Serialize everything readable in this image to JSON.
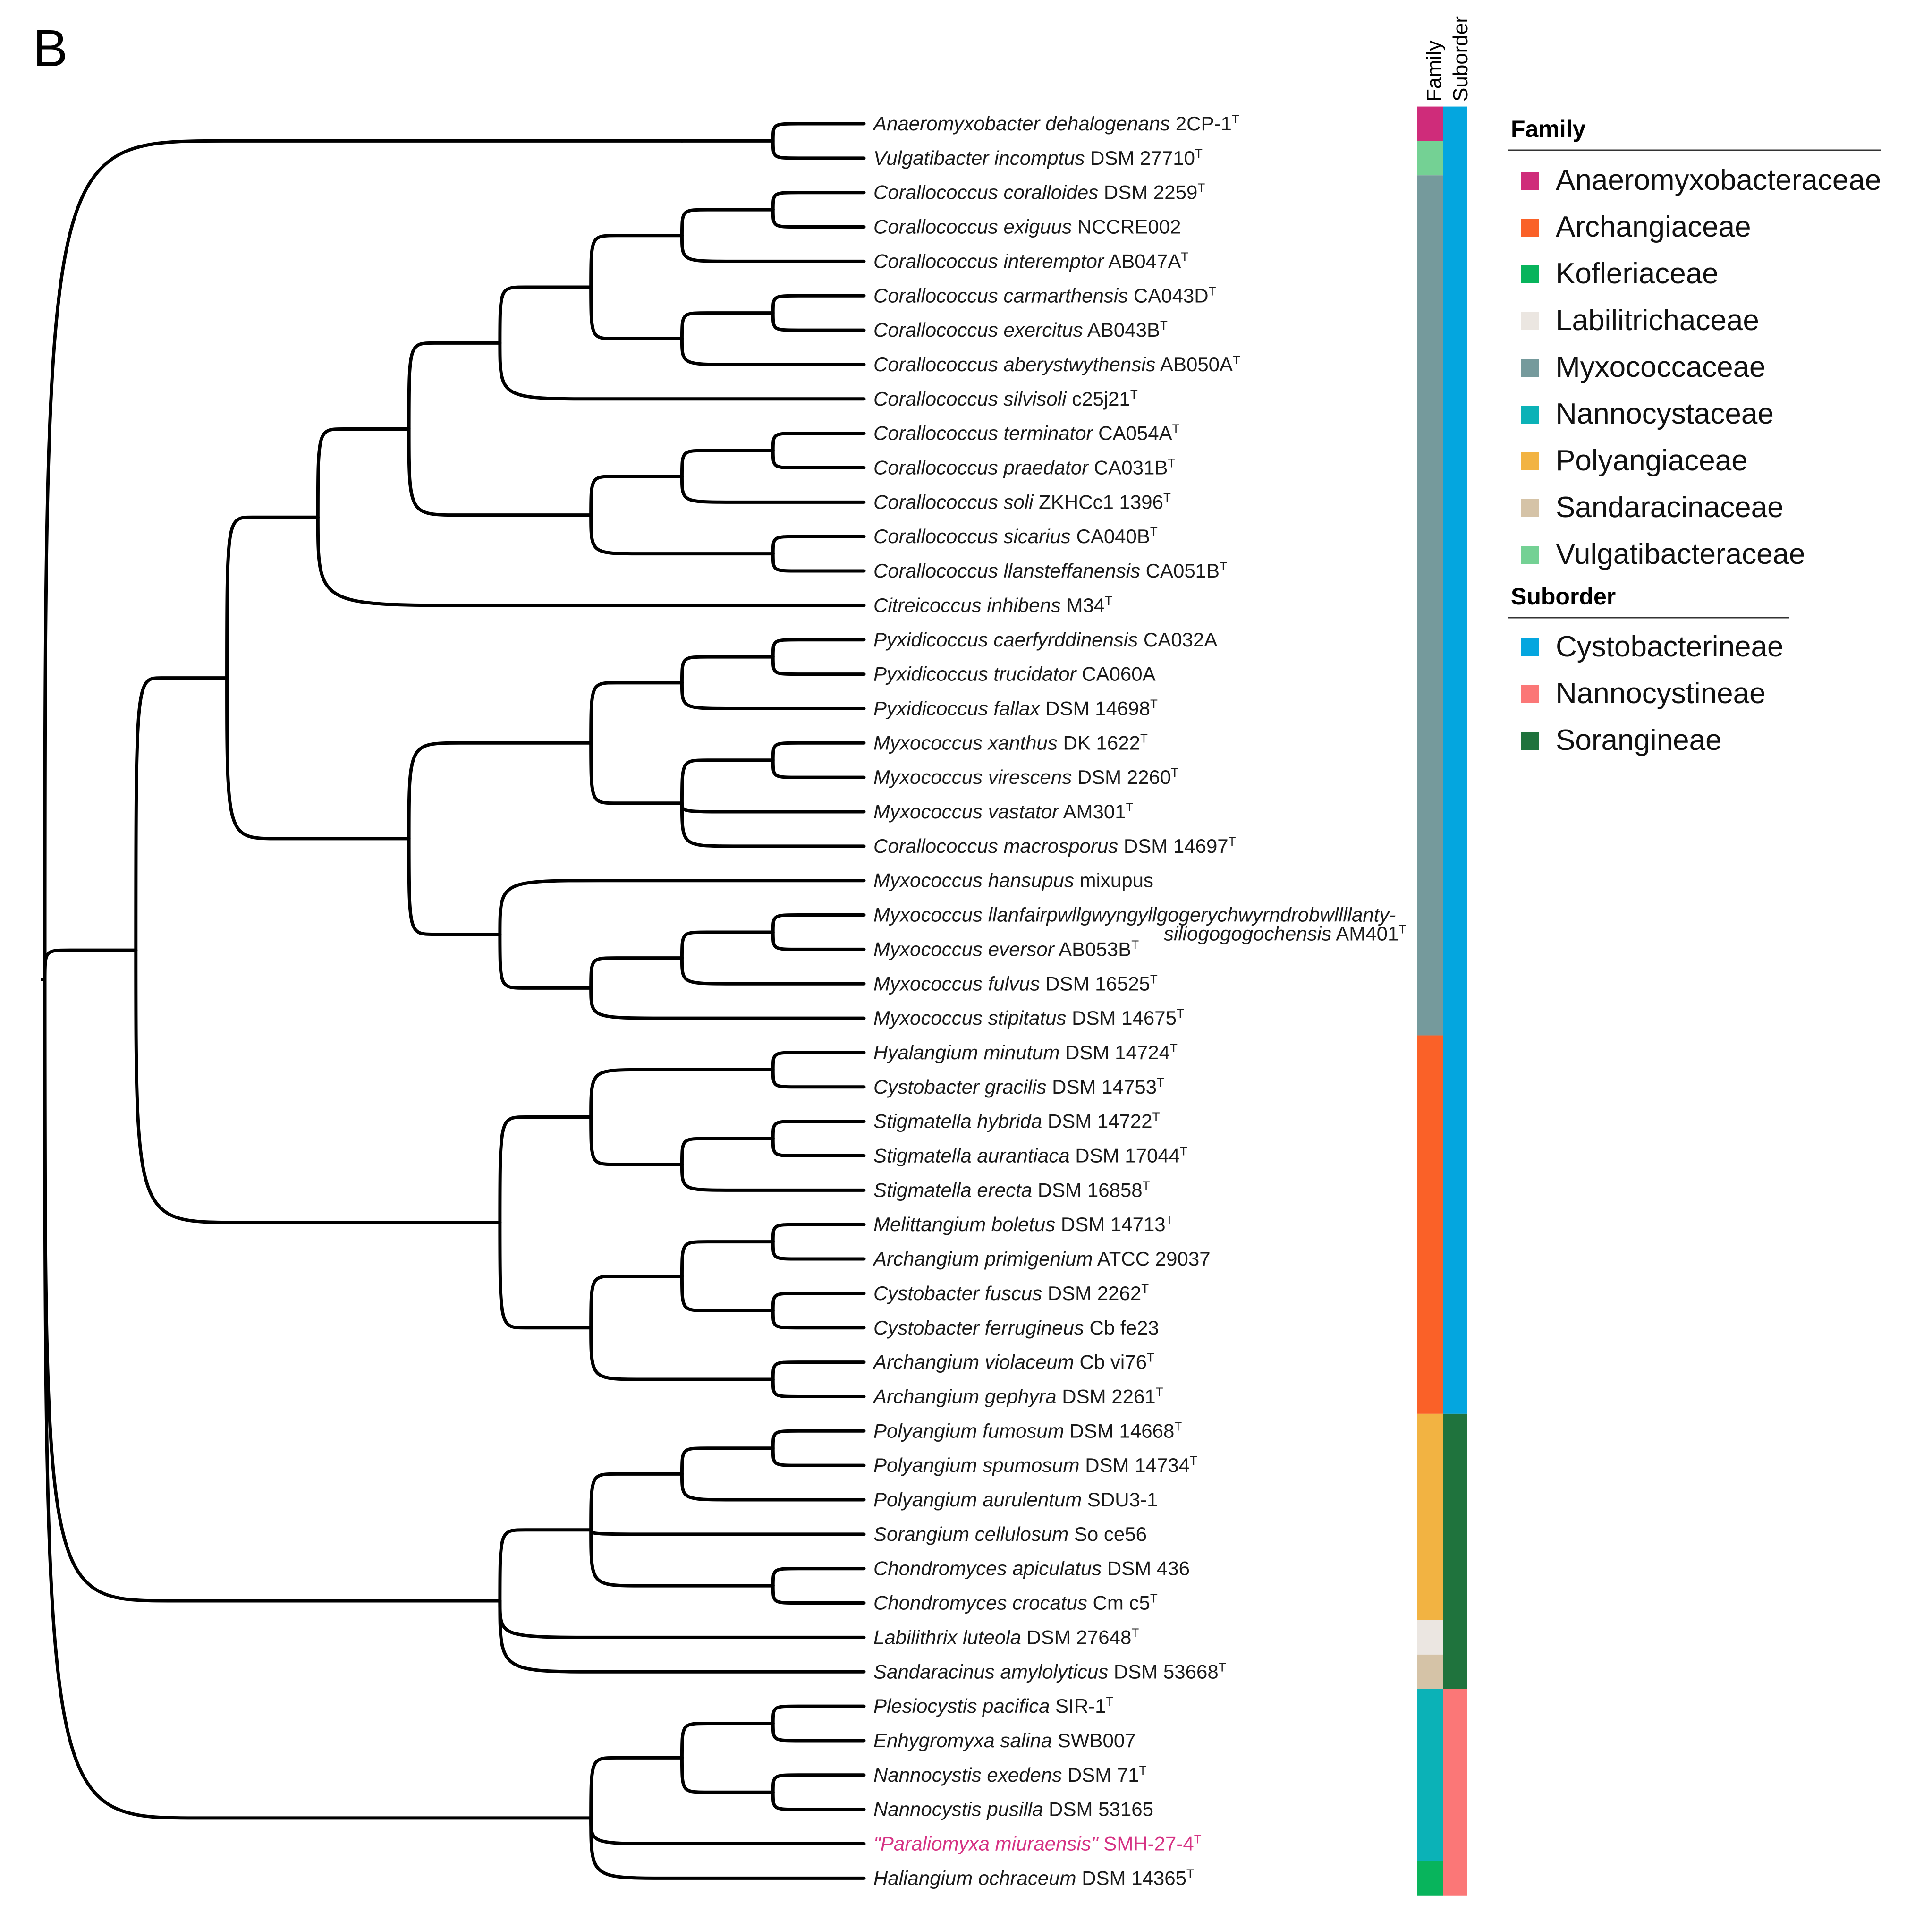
{
  "panel_label": "B",
  "strip_headers": {
    "family": "Family",
    "suborder": "Suborder"
  },
  "colors": {
    "branch": "#000000",
    "text": "#1a1a1a",
    "highlight": "#d63384"
  },
  "legend": {
    "family_title": "Family",
    "families": [
      {
        "label": "Anaeromyxobacteraceae",
        "color": "#cf2c7a"
      },
      {
        "label": "Archangiaceae",
        "color": "#fa6128"
      },
      {
        "label": "Kofleriaceae",
        "color": "#08b45c"
      },
      {
        "label": "Labilitrichaceae",
        "color": "#ebe6e1"
      },
      {
        "label": "Myxococcaceae",
        "color": "#759a9c"
      },
      {
        "label": "Nannocystaceae",
        "color": "#0bb2b7"
      },
      {
        "label": "Polyangiaceae",
        "color": "#f2b342"
      },
      {
        "label": "Sandaracinaceae",
        "color": "#d5c3a7"
      },
      {
        "label": "Vulgatibacteraceae",
        "color": "#74d194"
      }
    ],
    "suborder_title": "Suborder",
    "suborders": [
      {
        "label": "Cystobacterineae",
        "color": "#04a6df"
      },
      {
        "label": "Nannocystineae",
        "color": "#fb7777"
      },
      {
        "label": "Sorangineae",
        "color": "#1f733d"
      }
    ]
  },
  "taxa": [
    {
      "genus": "Anaeromyxobacter dehalogenans",
      "strain": "2CP-1",
      "type": true,
      "family": "Anaeromyxobacteraceae",
      "suborder": "Cystobacterineae"
    },
    {
      "genus": "Vulgatibacter incomptus",
      "strain": "DSM 27710",
      "type": true,
      "family": "Vulgatibacteraceae",
      "suborder": "Cystobacterineae"
    },
    {
      "genus": "Corallococcus coralloides",
      "strain": "DSM 2259",
      "type": true,
      "family": "Myxococcaceae",
      "suborder": "Cystobacterineae"
    },
    {
      "genus": "Corallococcus exiguus",
      "strain": "NCCRE002",
      "type": false,
      "family": "Myxococcaceae",
      "suborder": "Cystobacterineae"
    },
    {
      "genus": "Corallococcus interemptor",
      "strain": "AB047A",
      "type": true,
      "family": "Myxococcaceae",
      "suborder": "Cystobacterineae"
    },
    {
      "genus": "Corallococcus carmarthensis",
      "strain": "CA043D",
      "type": true,
      "family": "Myxococcaceae",
      "suborder": "Cystobacterineae"
    },
    {
      "genus": "Corallococcus exercitus",
      "strain": "AB043B",
      "type": true,
      "family": "Myxococcaceae",
      "suborder": "Cystobacterineae"
    },
    {
      "genus": "Corallococcus aberystwythensis",
      "strain": "AB050A",
      "type": true,
      "family": "Myxococcaceae",
      "suborder": "Cystobacterineae"
    },
    {
      "genus": "Corallococcus silvisoli",
      "strain": "c25j21",
      "type": true,
      "family": "Myxococcaceae",
      "suborder": "Cystobacterineae"
    },
    {
      "genus": "Corallococcus terminator",
      "strain": "CA054A",
      "type": true,
      "family": "Myxococcaceae",
      "suborder": "Cystobacterineae"
    },
    {
      "genus": "Corallococcus praedator",
      "strain": "CA031B",
      "type": true,
      "family": "Myxococcaceae",
      "suborder": "Cystobacterineae"
    },
    {
      "genus": "Corallococcus soli",
      "strain": "ZKHCc1 1396",
      "type": true,
      "family": "Myxococcaceae",
      "suborder": "Cystobacterineae"
    },
    {
      "genus": "Corallococcus sicarius",
      "strain": "CA040B",
      "type": true,
      "family": "Myxococcaceae",
      "suborder": "Cystobacterineae"
    },
    {
      "genus": "Corallococcus llansteffanensis",
      "strain": "CA051B",
      "type": true,
      "family": "Myxococcaceae",
      "suborder": "Cystobacterineae"
    },
    {
      "genus": "Citreicoccus inhibens",
      "strain": "M34",
      "type": true,
      "family": "Myxococcaceae",
      "suborder": "Cystobacterineae"
    },
    {
      "genus": "Pyxidicoccus caerfyrddinensis",
      "strain": "CA032A",
      "type": false,
      "family": "Myxococcaceae",
      "suborder": "Cystobacterineae"
    },
    {
      "genus": "Pyxidicoccus trucidator",
      "strain": "CA060A",
      "type": false,
      "family": "Myxococcaceae",
      "suborder": "Cystobacterineae"
    },
    {
      "genus": "Pyxidicoccus fallax",
      "strain": "DSM 14698",
      "type": true,
      "family": "Myxococcaceae",
      "suborder": "Cystobacterineae"
    },
    {
      "genus": "Myxococcus xanthus",
      "strain": "DK 1622",
      "type": true,
      "family": "Myxococcaceae",
      "suborder": "Cystobacterineae"
    },
    {
      "genus": "Myxococcus virescens",
      "strain": "DSM 2260",
      "type": true,
      "family": "Myxococcaceae",
      "suborder": "Cystobacterineae"
    },
    {
      "genus": "Myxococcus vastator",
      "strain": "AM301",
      "type": true,
      "family": "Myxococcaceae",
      "suborder": "Cystobacterineae"
    },
    {
      "genus": "Corallococcus macrosporus",
      "strain": "DSM 14697",
      "type": true,
      "family": "Myxococcaceae",
      "suborder": "Cystobacterineae"
    },
    {
      "genus": "Myxococcus hansupus",
      "strain": "mixupus",
      "type": false,
      "family": "Myxococcaceae",
      "suborder": "Cystobacterineae"
    },
    {
      "genus": "Myxococcus llanfairpwllgwyngyllgogerychwyrndrobwllllanty-",
      "genus2": "siliogogogochensis",
      "strain": "AM401",
      "type": true,
      "family": "Myxococcaceae",
      "suborder": "Cystobacterineae"
    },
    {
      "genus": "Myxococcus eversor",
      "strain": "AB053B",
      "type": true,
      "family": "Myxococcaceae",
      "suborder": "Cystobacterineae"
    },
    {
      "genus": "Myxococcus fulvus",
      "strain": "DSM 16525",
      "type": true,
      "family": "Myxococcaceae",
      "suborder": "Cystobacterineae"
    },
    {
      "genus": "Myxococcus stipitatus",
      "strain": "DSM 14675",
      "type": true,
      "family": "Myxococcaceae",
      "suborder": "Cystobacterineae"
    },
    {
      "genus": "Hyalangium minutum",
      "strain": "DSM 14724",
      "type": true,
      "family": "Archangiaceae",
      "suborder": "Cystobacterineae"
    },
    {
      "genus": "Cystobacter gracilis",
      "strain": "DSM 14753",
      "type": true,
      "family": "Archangiaceae",
      "suborder": "Cystobacterineae"
    },
    {
      "genus": "Stigmatella hybrida",
      "strain": "DSM 14722",
      "type": true,
      "family": "Archangiaceae",
      "suborder": "Cystobacterineae"
    },
    {
      "genus": "Stigmatella aurantiaca",
      "strain": "DSM 17044",
      "type": true,
      "family": "Archangiaceae",
      "suborder": "Cystobacterineae"
    },
    {
      "genus": "Stigmatella erecta",
      "strain": "DSM 16858",
      "type": true,
      "family": "Archangiaceae",
      "suborder": "Cystobacterineae"
    },
    {
      "genus": "Melittangium boletus",
      "strain": "DSM 14713",
      "type": true,
      "family": "Archangiaceae",
      "suborder": "Cystobacterineae"
    },
    {
      "genus": "Archangium primigenium",
      "strain": "ATCC 29037",
      "type": false,
      "family": "Archangiaceae",
      "suborder": "Cystobacterineae"
    },
    {
      "genus": "Cystobacter fuscus",
      "strain": "DSM 2262",
      "type": true,
      "family": "Archangiaceae",
      "suborder": "Cystobacterineae"
    },
    {
      "genus": "Cystobacter ferrugineus",
      "strain": "Cb fe23",
      "type": false,
      "family": "Archangiaceae",
      "suborder": "Cystobacterineae"
    },
    {
      "genus": "Archangium violaceum",
      "strain": "Cb vi76",
      "type": true,
      "family": "Archangiaceae",
      "suborder": "Cystobacterineae"
    },
    {
      "genus": "Archangium gephyra",
      "strain": "DSM 2261",
      "type": true,
      "family": "Archangiaceae",
      "suborder": "Cystobacterineae"
    },
    {
      "genus": "Polyangium fumosum",
      "strain": "DSM 14668",
      "type": true,
      "family": "Polyangiaceae",
      "suborder": "Sorangineae"
    },
    {
      "genus": "Polyangium spumosum",
      "strain": "DSM 14734",
      "type": true,
      "family": "Polyangiaceae",
      "suborder": "Sorangineae"
    },
    {
      "genus": "Polyangium aurulentum",
      "strain": "SDU3-1",
      "type": false,
      "family": "Polyangiaceae",
      "suborder": "Sorangineae"
    },
    {
      "genus": "Sorangium cellulosum",
      "strain": "So ce56",
      "type": false,
      "family": "Polyangiaceae",
      "suborder": "Sorangineae"
    },
    {
      "genus": "Chondromyces apiculatus",
      "strain": "DSM 436",
      "type": false,
      "family": "Polyangiaceae",
      "suborder": "Sorangineae"
    },
    {
      "genus": "Chondromyces crocatus",
      "strain": "Cm c5",
      "type": true,
      "family": "Polyangiaceae",
      "suborder": "Sorangineae"
    },
    {
      "genus": "Labilithrix luteola",
      "strain": "DSM 27648",
      "type": true,
      "family": "Labilitrichaceae",
      "suborder": "Sorangineae"
    },
    {
      "genus": "Sandaracinus amylolyticus",
      "strain": "DSM 53668",
      "type": true,
      "family": "Sandaracinaceae",
      "suborder": "Sorangineae"
    },
    {
      "genus": "Plesiocystis pacifica",
      "strain": "SIR-1",
      "type": true,
      "family": "Nannocystaceae",
      "suborder": "Nannocystineae"
    },
    {
      "genus": "Enhygromyxa salina",
      "strain": "SWB007",
      "type": false,
      "family": "Nannocystaceae",
      "suborder": "Nannocystineae"
    },
    {
      "genus": "Nannocystis exedens",
      "strain": "DSM 71",
      "type": true,
      "family": "Nannocystaceae",
      "suborder": "Nannocystineae"
    },
    {
      "genus": "Nannocystis pusilla",
      "strain": "DSM 53165",
      "type": false,
      "family": "Nannocystaceae",
      "suborder": "Nannocystineae"
    },
    {
      "genus": "\"Paraliomyxa miuraensis\"",
      "strain": "SMH-27-4",
      "type": true,
      "highlight": true,
      "family": "Nannocystaceae",
      "suborder": "Nannocystineae"
    },
    {
      "genus": "Haliangium ochraceum",
      "strain": "DSM 14365",
      "type": true,
      "family": "Kofleriaceae",
      "suborder": "Nannocystineae"
    }
  ],
  "type_marker": "T",
  "tree": {
    "children": [
      {
        "children": [
          {
            "children": [
              {
                "children": [
                  {
                    "children": [
                      {
                        "children": [
                          {
                            "children": [
                              {
                                "children": [
                                  {
                                    "children": [
                                      2,
                                      3
                                    ]
                                  },
                                  4
                                ]
                              },
                              {
                                "children": [
                                  {
                                    "children": [
                                      5,
                                      6
                                    ]
                                  },
                                  7
                                ]
                              }
                            ]
                          },
                          8
                        ]
                      },
                      {
                        "children": [
                          {
                            "children": [
                              {
                                "children": [
                                  9,
                                  10
                                ]
                              },
                              11
                            ]
                          },
                          {
                            "children": [
                              12,
                              13
                            ]
                          }
                        ]
                      }
                    ]
                  },
                  14
                ]
              },
              {
                "children": [
                  {
                    "children": [
                      {
                        "children": [
                          {
                            "children": [
                              15,
                              16
                            ]
                          },
                          17
                        ]
                      },
                      {
                        "children": [
                          {
                            "children": [
                              18,
                              19
                            ]
                          },
                          20,
                          21
                        ]
                      }
                    ]
                  },
                  {
                    "children": [
                      22,
                      {
                        "children": [
                          {
                            "children": [
                              {
                                "children": [
                                  23,
                                  24
                                ]
                              },
                              25
                            ]
                          },
                          26
                        ]
                      }
                    ]
                  }
                ]
              }
            ]
          },
          {
            "children": [
              {
                "children": [
                  {
                    "children": [
                      27,
                      28
                    ]
                  },
                  {
                    "children": [
                      {
                        "children": [
                          29,
                          30
                        ]
                      },
                      31
                    ]
                  }
                ]
              },
              {
                "children": [
                  {
                    "children": [
                      {
                        "children": [
                          32,
                          33
                        ]
                      },
                      {
                        "children": [
                          34,
                          35
                        ]
                      }
                    ]
                  },
                  {
                    "children": [
                      36,
                      37
                    ]
                  }
                ]
              }
            ]
          }
        ]
      },
      {
        "children": [
          {
            "children": [
              0,
              1
            ]
          }
        ]
      },
      {
        "children": [
          {
            "children": [
              {
                "children": [
                  {
                    "children": [
                      38,
                      39
                    ]
                  },
                  40
                ]
              },
              41,
              {
                "children": [
                  42,
                  43
                ]
              }
            ]
          },
          44,
          45
        ]
      },
      {
        "children": [
          {
            "children": [
              {
                "children": [
                  46,
                  47
                ]
              },
              {
                "children": [
                  48,
                  49
                ]
              }
            ]
          },
          50,
          51
        ]
      }
    ]
  }
}
